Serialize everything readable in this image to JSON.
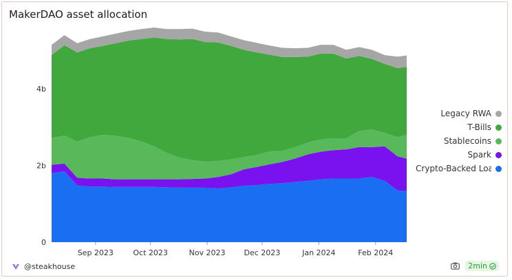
{
  "title": "MakerDAO asset allocation",
  "footer": {
    "brand": "@steakhouse",
    "refresh": "2min"
  },
  "colors": {
    "Legacy RWA": "#a6a6a6",
    "T-Bills": "#40a83c",
    "Stablecoins": "#58b95a",
    "Spark": "#7a12ef",
    "Crypto-Backed Loans": "#1a6ef2"
  },
  "chart_data": {
    "type": "area",
    "stacked": true,
    "title": "MakerDAO asset allocation",
    "y_unit": "b",
    "ylim": [
      0,
      5.6
    ],
    "yticks": [
      0,
      2,
      4
    ],
    "ytick_labels": [
      "0",
      "2b",
      "4b"
    ],
    "xlim": [
      "2023-08-08",
      "2024-02-18"
    ],
    "xticks": [
      "2023-09-01",
      "2023-10-01",
      "2023-11-01",
      "2023-12-01",
      "2024-01-01",
      "2024-02-01"
    ],
    "xtick_labels": [
      "Sep 2023",
      "Oct 2023",
      "Nov 2023",
      "Dec 2023",
      "Jan 2024",
      "Feb 2024"
    ],
    "legend_position": "right",
    "x": [
      "2023-08-08",
      "2023-08-15",
      "2023-08-22",
      "2023-08-29",
      "2023-09-05",
      "2023-09-12",
      "2023-09-19",
      "2023-09-26",
      "2023-10-03",
      "2023-10-10",
      "2023-10-17",
      "2023-10-24",
      "2023-10-31",
      "2023-11-07",
      "2023-11-14",
      "2023-11-21",
      "2023-11-28",
      "2023-12-05",
      "2023-12-12",
      "2023-12-19",
      "2023-12-26",
      "2024-01-02",
      "2024-01-09",
      "2024-01-16",
      "2024-01-23",
      "2024-01-30",
      "2024-02-06",
      "2024-02-13",
      "2024-02-18"
    ],
    "series": [
      {
        "name": "Crypto-Backed Loans",
        "values": [
          1.8,
          1.85,
          1.48,
          1.45,
          1.45,
          1.44,
          1.44,
          1.44,
          1.44,
          1.43,
          1.42,
          1.42,
          1.42,
          1.4,
          1.43,
          1.47,
          1.49,
          1.52,
          1.54,
          1.57,
          1.6,
          1.64,
          1.66,
          1.66,
          1.66,
          1.7,
          1.6,
          1.35,
          1.33
        ]
      },
      {
        "name": "Spark",
        "values": [
          0.22,
          0.2,
          0.2,
          0.21,
          0.21,
          0.2,
          0.2,
          0.2,
          0.2,
          0.21,
          0.22,
          0.23,
          0.24,
          0.3,
          0.34,
          0.43,
          0.47,
          0.51,
          0.55,
          0.61,
          0.69,
          0.72,
          0.74,
          0.76,
          0.82,
          0.78,
          0.9,
          0.89,
          0.85
        ]
      },
      {
        "name": "Stablecoins",
        "values": [
          0.7,
          0.73,
          0.94,
          1.08,
          1.14,
          1.13,
          1.08,
          0.99,
          0.86,
          0.69,
          0.56,
          0.49,
          0.44,
          0.42,
          0.39,
          0.32,
          0.31,
          0.34,
          0.29,
          0.3,
          0.31,
          0.32,
          0.31,
          0.29,
          0.42,
          0.46,
          0.35,
          0.5,
          0.62
        ]
      },
      {
        "name": "T-Bills",
        "values": [
          2.16,
          2.36,
          2.33,
          2.32,
          2.32,
          2.42,
          2.54,
          2.67,
          2.84,
          2.97,
          3.09,
          3.16,
          3.12,
          3.09,
          2.96,
          2.8,
          2.68,
          2.52,
          2.45,
          2.35,
          2.24,
          2.24,
          2.21,
          2.08,
          1.96,
          1.84,
          1.8,
          1.8,
          1.77
        ]
      },
      {
        "name": "Legacy RWA",
        "values": [
          0.27,
          0.26,
          0.24,
          0.24,
          0.25,
          0.25,
          0.25,
          0.26,
          0.26,
          0.26,
          0.27,
          0.27,
          0.27,
          0.26,
          0.25,
          0.25,
          0.25,
          0.24,
          0.24,
          0.23,
          0.23,
          0.23,
          0.23,
          0.23,
          0.23,
          0.24,
          0.23,
          0.3,
          0.3
        ]
      }
    ]
  }
}
